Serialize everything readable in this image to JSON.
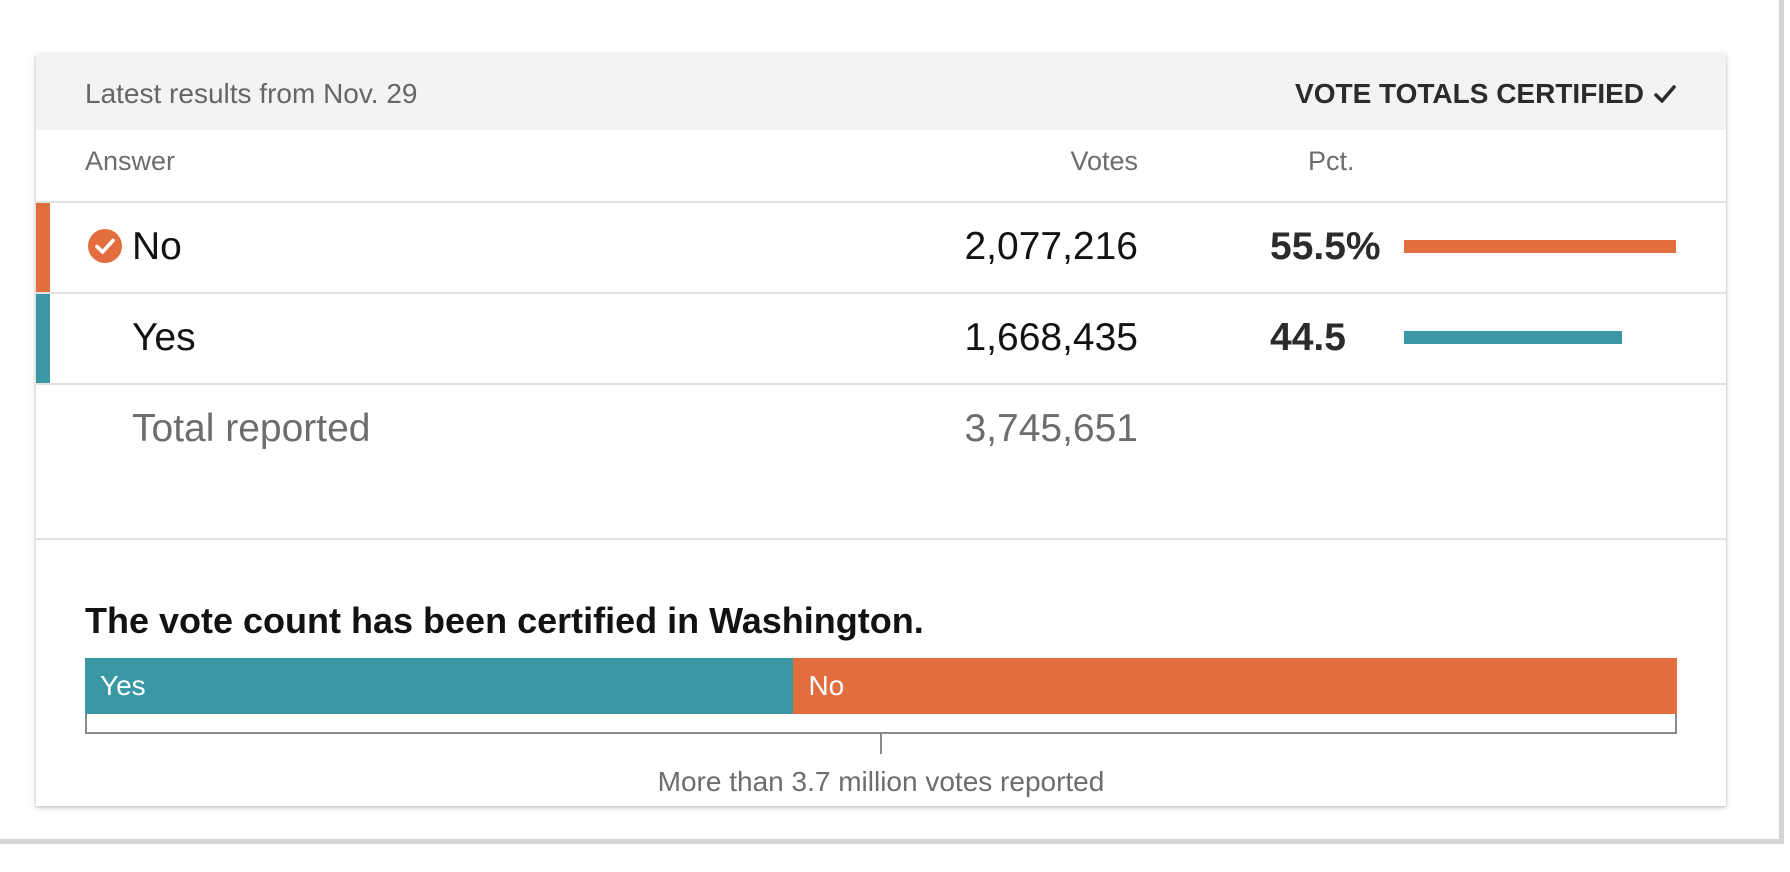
{
  "header": {
    "date_text": "Latest results from Nov. 29",
    "status_text": "VOTE TOTALS CERTIFIED",
    "status_icon": "check-icon"
  },
  "columns": {
    "answer": "Answer",
    "votes": "Votes",
    "pct": "Pct."
  },
  "rows": [
    {
      "answer": "No",
      "votes": "2,077,216",
      "pct_text": "55.5%",
      "pct_value": 55.5,
      "color": "#e26d3f",
      "winner": true,
      "winner_icon": "check-circle-icon"
    },
    {
      "answer": "Yes",
      "votes": "1,668,435",
      "pct_text": "44.5",
      "pct_value": 44.5,
      "color": "#3a98a5",
      "winner": false
    }
  ],
  "total": {
    "label": "Total reported",
    "votes": "3,745,651"
  },
  "summary": {
    "title": "The vote count has been certified in Washington.",
    "caption": "More than 3.7 million votes reported"
  },
  "stacked_bar": [
    {
      "label": "Yes",
      "value": 44.5,
      "color": "#3a98a5"
    },
    {
      "label": "No",
      "value": 55.5,
      "color": "#e26d3f"
    }
  ]
}
